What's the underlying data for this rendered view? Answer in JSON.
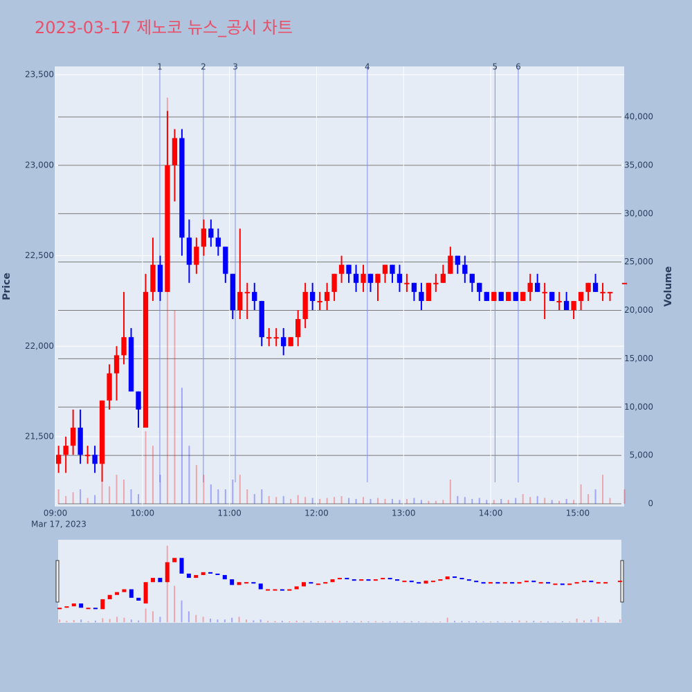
{
  "chart_data": {
    "type": "candlestick",
    "title": "2023-03-17 제노코 뉴스_공시 차트",
    "y_axis_title": "Price",
    "y2_axis_title": "Volume",
    "x_date_label": "Mar 17, 2023",
    "increasing_color": "#ff0000",
    "decreasing_color": "#0000ff",
    "x": [
      "09:00",
      "09:05",
      "09:10",
      "09:15",
      "09:20",
      "09:25",
      "09:30",
      "09:35",
      "09:40",
      "09:45",
      "09:50",
      "09:55",
      "10:00",
      "10:05",
      "10:10",
      "10:15",
      "10:20",
      "10:25",
      "10:30",
      "10:35",
      "10:40",
      "10:45",
      "10:50",
      "10:55",
      "11:00",
      "11:05",
      "11:10",
      "11:15",
      "11:20",
      "11:25",
      "11:30",
      "11:35",
      "11:40",
      "11:45",
      "11:50",
      "11:55",
      "12:00",
      "12:05",
      "12:10",
      "12:15",
      "12:20",
      "12:25",
      "12:30",
      "12:35",
      "12:40",
      "12:45",
      "12:50",
      "12:55",
      "13:00",
      "13:05",
      "13:10",
      "13:15",
      "13:20",
      "13:25",
      "13:30",
      "13:35",
      "13:40",
      "13:45",
      "13:50",
      "13:55",
      "14:00",
      "14:05",
      "14:10",
      "14:15",
      "14:20",
      "14:25",
      "14:30",
      "14:35",
      "14:40",
      "14:45",
      "14:50",
      "14:55",
      "15:00",
      "15:05",
      "15:10",
      "15:15",
      "15:20",
      "15:30"
    ],
    "open": [
      21350,
      21400,
      21450,
      21550,
      21400,
      21400,
      21350,
      21700,
      21850,
      21950,
      22050,
      21750,
      21550,
      22300,
      22450,
      22300,
      23000,
      23150,
      22600,
      22450,
      22550,
      22650,
      22600,
      22550,
      22400,
      22200,
      22300,
      22300,
      22250,
      22050,
      22050,
      22050,
      22000,
      22050,
      22150,
      22300,
      22250,
      22250,
      22300,
      22400,
      22450,
      22400,
      22350,
      22400,
      22350,
      22400,
      22450,
      22400,
      22350,
      22350,
      22300,
      22250,
      22350,
      22350,
      22400,
      22500,
      22450,
      22400,
      22350,
      22300,
      22250,
      22300,
      22250,
      22300,
      22250,
      22300,
      22350,
      22300,
      22300,
      22250,
      22250,
      22200,
      22250,
      22300,
      22350,
      22300,
      22300,
      22350
    ],
    "high": [
      21450,
      21500,
      21650,
      21650,
      21450,
      21450,
      21700,
      21900,
      22000,
      22300,
      22100,
      21750,
      22400,
      22600,
      22500,
      23300,
      23200,
      23200,
      22700,
      22600,
      22700,
      22700,
      22650,
      22550,
      22400,
      22650,
      22350,
      22350,
      22250,
      22100,
      22100,
      22100,
      22050,
      22200,
      22350,
      22350,
      22300,
      22350,
      22400,
      22500,
      22450,
      22450,
      22450,
      22400,
      22400,
      22450,
      22450,
      22450,
      22400,
      22350,
      22350,
      22350,
      22400,
      22450,
      22550,
      22500,
      22500,
      22400,
      22350,
      22300,
      22300,
      22300,
      22300,
      22300,
      22300,
      22400,
      22400,
      22350,
      22300,
      22300,
      22300,
      22250,
      22300,
      22350,
      22400,
      22350,
      22300,
      22350
    ],
    "low": [
      21300,
      21300,
      21400,
      21350,
      21350,
      21300,
      21250,
      21650,
      21700,
      21900,
      21750,
      21550,
      21550,
      22250,
      22250,
      22300,
      22800,
      22500,
      22350,
      22400,
      22500,
      22550,
      22500,
      22350,
      22150,
      22150,
      22150,
      22200,
      22000,
      22000,
      22000,
      21950,
      22000,
      22000,
      22100,
      22200,
      22200,
      22200,
      22250,
      22350,
      22350,
      22300,
      22300,
      22300,
      22250,
      22350,
      22350,
      22300,
      22300,
      22250,
      22200,
      22250,
      22300,
      22350,
      22400,
      22400,
      22350,
      22300,
      22250,
      22250,
      22250,
      22250,
      22250,
      22250,
      22250,
      22250,
      22300,
      22150,
      22250,
      22200,
      22200,
      22150,
      22200,
      22250,
      22300,
      22250,
      22250,
      22350
    ],
    "close": [
      21400,
      21450,
      21550,
      21400,
      21400,
      21350,
      21700,
      21850,
      21950,
      22050,
      21750,
      21650,
      22300,
      22450,
      22300,
      23000,
      23150,
      22600,
      22450,
      22550,
      22650,
      22600,
      22550,
      22400,
      22200,
      22300,
      22300,
      22250,
      22050,
      22050,
      22050,
      22000,
      22050,
      22150,
      22300,
      22250,
      22250,
      22300,
      22400,
      22450,
      22400,
      22350,
      22400,
      22350,
      22400,
      22450,
      22400,
      22350,
      22350,
      22300,
      22250,
      22350,
      22350,
      22400,
      22500,
      22450,
      22400,
      22350,
      22300,
      22250,
      22300,
      22250,
      22300,
      22250,
      22300,
      22350,
      22300,
      22300,
      22250,
      22250,
      22200,
      22250,
      22300,
      22350,
      22300,
      22300,
      22300,
      22350
    ],
    "volume": [
      1500,
      800,
      1200,
      1500,
      600,
      900,
      2200,
      1800,
      3000,
      2500,
      1500,
      1000,
      7500,
      6000,
      3000,
      42000,
      20000,
      12000,
      6000,
      4000,
      3000,
      2000,
      1500,
      1500,
      2500,
      3000,
      1500,
      1000,
      1500,
      800,
      700,
      800,
      500,
      900,
      700,
      600,
      500,
      600,
      700,
      800,
      600,
      500,
      700,
      500,
      600,
      500,
      500,
      400,
      500,
      600,
      400,
      300,
      300,
      400,
      2500,
      800,
      700,
      500,
      600,
      400,
      400,
      500,
      400,
      600,
      1000,
      700,
      800,
      600,
      400,
      300,
      500,
      400,
      2000,
      1000,
      1500,
      3000,
      600,
      1500
    ],
    "xlim": [
      "09:00",
      "15:32"
    ],
    "xticks": [
      "09:00",
      "10:00",
      "11:00",
      "12:00",
      "13:00",
      "14:00",
      "15:00"
    ],
    "ylim": [
      21114,
      23546
    ],
    "yticks": [
      {
        "value": 21500,
        "label": "21,500"
      },
      {
        "value": 22000,
        "label": "22,000"
      },
      {
        "value": 22500,
        "label": "22,500"
      },
      {
        "value": 23000,
        "label": "23,000"
      },
      {
        "value": 23500,
        "label": "23,500"
      }
    ],
    "y2lim": [
      -286,
      45224
    ],
    "y2ticks": [
      0,
      {
        "value": 5000,
        "label": "5,000"
      },
      {
        "value": 10000,
        "label": "10,000"
      },
      {
        "value": 15000,
        "label": "15,000"
      },
      {
        "value": 20000,
        "label": "20,000"
      },
      {
        "value": 25000,
        "label": "25,000"
      },
      {
        "value": 30000,
        "label": "30,000"
      },
      {
        "value": 35000,
        "label": "35,000"
      },
      {
        "value": 40000,
        "label": "40,000"
      }
    ],
    "news_markers": [
      {
        "label": "1",
        "x": "10:12"
      },
      {
        "label": "2",
        "x": "10:42"
      },
      {
        "label": "3",
        "x": "11:04"
      },
      {
        "label": "4",
        "x": "12:35"
      },
      {
        "label": "5",
        "x": "14:03"
      },
      {
        "label": "6",
        "x": "14:19"
      }
    ]
  }
}
